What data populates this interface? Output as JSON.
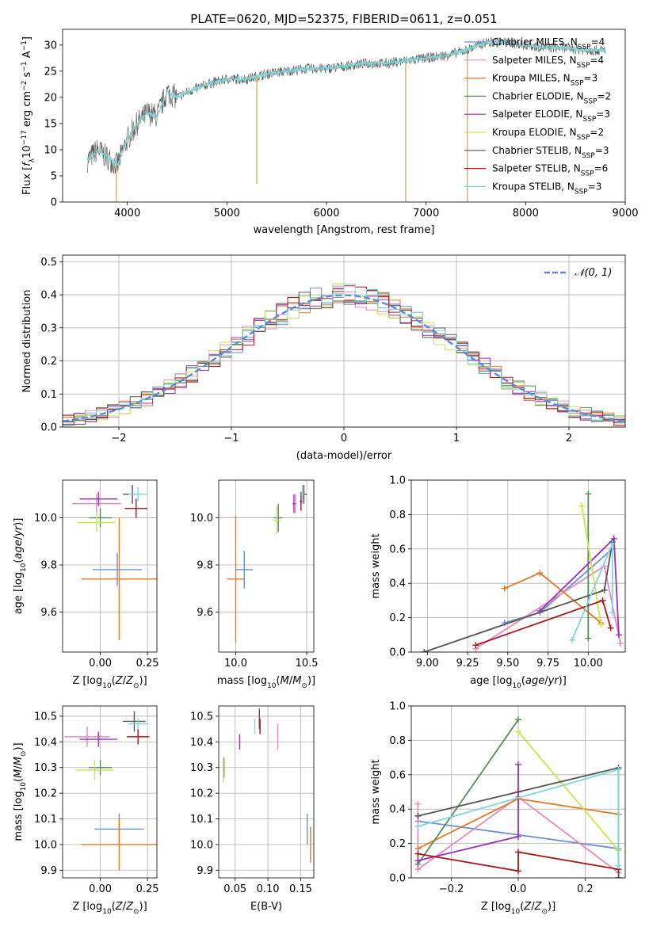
{
  "figure": {
    "title": "PLATE=0620, MJD=52375, FIBERID=0611, z=0.051"
  },
  "legend_colors": {
    "chabrier_miles": "#6a8fd8",
    "salpeter_miles": "#e88ac0",
    "kroupa_miles": "#e07b25",
    "chabrier_elodie": "#5a8a5e",
    "salpeter_elodie": "#9b30b0",
    "kroupa_elodie": "#cde44a",
    "chabrier_stelib": "#555555",
    "salpeter_stelib": "#aa1818",
    "kroupa_stelib": "#7fd6dc"
  },
  "chart_data": [
    {
      "id": "spectrum",
      "type": "line",
      "xlabel": "wavelength [Angstrom, rest frame]",
      "ylabel": "Flux [f_λ10^-17 erg cm^-2 s^-1 A^-1]",
      "xlim": [
        3350,
        9000
      ],
      "ylim": [
        0,
        33
      ],
      "xticks": [
        4000,
        5000,
        6000,
        7000,
        8000,
        9000
      ],
      "yticks": [
        0,
        5,
        10,
        15,
        20,
        25,
        30
      ],
      "grid": false,
      "legend_position": "right",
      "legend": [
        {
          "label": "Chabrier MILES, N_SSP=4",
          "color": "#6a8fd8"
        },
        {
          "label": "Salpeter MILES, N_SSP=4",
          "color": "#e88ac0"
        },
        {
          "label": "Kroupa MILES, N_SSP=3",
          "color": "#e07b25"
        },
        {
          "label": "Chabrier ELODIE, N_SSP=2",
          "color": "#5a8a5e"
        },
        {
          "label": "Salpeter ELODIE, N_SSP=3",
          "color": "#9b30b0"
        },
        {
          "label": "Kroupa ELODIE, N_SSP=2",
          "color": "#cde44a"
        },
        {
          "label": "Chabrier STELIB, N_SSP=3",
          "color": "#555555"
        },
        {
          "label": "Salpeter STELIB, N_SSP=6",
          "color": "#aa1818"
        },
        {
          "label": "Kroupa STELIB, N_SSP=3",
          "color": "#7fd6dc"
        }
      ],
      "data_trend": {
        "x": [
          3600,
          3700,
          3800,
          3900,
          4000,
          4100,
          4200,
          4300,
          4400,
          4500,
          4600,
          4800,
          5000,
          5200,
          5400,
          5600,
          5800,
          6000,
          6200,
          6400,
          6600,
          6800,
          7000,
          7200,
          7400,
          7600,
          7800,
          8000,
          8200,
          8400,
          8600,
          8800
        ],
        "y": [
          8,
          10,
          8.5,
          7,
          12,
          15,
          17,
          16.5,
          21,
          20,
          21,
          22.5,
          23.5,
          23.5,
          24.5,
          25,
          25.5,
          25.5,
          26,
          26.5,
          26.5,
          27,
          27.5,
          28,
          29,
          30.5,
          30.5,
          30,
          29.5,
          29.5,
          29,
          29
        ]
      },
      "spikes": [
        {
          "x": 3890,
          "y": 0
        },
        {
          "x": 5300,
          "y": 3.5
        },
        {
          "x": 6795,
          "y": 0
        },
        {
          "x": 7415,
          "y": 0
        }
      ]
    },
    {
      "id": "residuals",
      "type": "line",
      "xlabel": "(data-model)/error",
      "ylabel": "Normed distribution",
      "xlim": [
        -2.5,
        2.5
      ],
      "ylim": [
        0,
        0.52
      ],
      "xticks": [
        -2,
        -1,
        0,
        1,
        2
      ],
      "yticks": [
        0.0,
        0.1,
        0.2,
        0.3,
        0.4,
        0.5
      ],
      "grid": true,
      "legend_position": "top-right",
      "legend": [
        {
          "label": "𝒩(0, 1)",
          "color": "#5b8bd8",
          "style": "dashed"
        }
      ],
      "curve": "normal(0,1)",
      "histogram_bin_width": 0.1,
      "histogram_series_colors": [
        "#6a8fd8",
        "#e88ac0",
        "#e07b25",
        "#5a8a5e",
        "#9b30b0",
        "#cde44a",
        "#555555",
        "#aa1818",
        "#7fd6dc"
      ]
    },
    {
      "id": "age_vs_Z",
      "type": "scatter",
      "xlabel": "Z [log10(Z/Z⊙)]",
      "ylabel": "age  [log10(age/yr)]",
      "xlim": [
        -0.2,
        0.3
      ],
      "ylim": [
        9.43,
        10.16
      ],
      "xticks": [
        0.0,
        0.25
      ],
      "yticks": [
        9.6,
        9.8,
        10.0
      ],
      "grid": true,
      "points": [
        {
          "x": 0.09,
          "y": 9.78,
          "xerr": 0.13,
          "yerr": 0.07,
          "color": "#6a8fd8"
        },
        {
          "x": 0.1,
          "y": 9.74,
          "xerr": 0.2,
          "yerr": 0.26,
          "color": "#e07b25"
        },
        {
          "x": -0.02,
          "y": 10.06,
          "xerr": 0.13,
          "yerr": 0.04,
          "color": "#e88ac0"
        },
        {
          "x": -0.01,
          "y": 10.08,
          "xerr": 0.1,
          "yerr": 0.03,
          "color": "#9b30b0"
        },
        {
          "x": 0.0,
          "y": 10.0,
          "xerr": 0.06,
          "yerr": 0.04,
          "color": "#5a8a5e"
        },
        {
          "x": -0.02,
          "y": 9.98,
          "xerr": 0.1,
          "yerr": 0.04,
          "color": "#cde44a"
        },
        {
          "x": 0.17,
          "y": 10.1,
          "xerr": 0.05,
          "yerr": 0.04,
          "color": "#555555"
        },
        {
          "x": 0.19,
          "y": 10.04,
          "xerr": 0.06,
          "yerr": 0.04,
          "color": "#aa1818"
        },
        {
          "x": 0.2,
          "y": 10.1,
          "xerr": 0.05,
          "yerr": 0.03,
          "color": "#7fd6dc"
        }
      ]
    },
    {
      "id": "age_vs_mass",
      "type": "scatter",
      "xlabel": "mass [log10(M/M⊙)]",
      "ylabel": "",
      "xlim": [
        9.88,
        10.55
      ],
      "ylim": [
        9.43,
        10.16
      ],
      "xticks": [
        10.0,
        10.5
      ],
      "yticks": [
        9.6,
        9.8,
        10.0
      ],
      "grid": true,
      "points": [
        {
          "x": 10.06,
          "y": 9.78,
          "xerr": 0.06,
          "yerr": 0.08,
          "color": "#6a8fd8"
        },
        {
          "x": 10.0,
          "y": 9.74,
          "xerr": 0.06,
          "yerr": 0.27,
          "color": "#e07b25"
        },
        {
          "x": 10.42,
          "y": 10.06,
          "xerr": 0.01,
          "yerr": 0.04,
          "color": "#e88ac0"
        },
        {
          "x": 10.41,
          "y": 10.06,
          "xerr": 0.01,
          "yerr": 0.04,
          "color": "#9b30b0"
        },
        {
          "x": 10.3,
          "y": 10.0,
          "xerr": 0.03,
          "yerr": 0.06,
          "color": "#5a8a5e"
        },
        {
          "x": 10.29,
          "y": 9.99,
          "xerr": 0.03,
          "yerr": 0.06,
          "color": "#cde44a"
        },
        {
          "x": 10.48,
          "y": 10.1,
          "xerr": 0.02,
          "yerr": 0.04,
          "color": "#555555"
        },
        {
          "x": 10.46,
          "y": 10.07,
          "xerr": 0.01,
          "yerr": 0.04,
          "color": "#aa1818"
        },
        {
          "x": 10.47,
          "y": 10.1,
          "xerr": 0.01,
          "yerr": 0.04,
          "color": "#7fd6dc"
        }
      ]
    },
    {
      "id": "weight_vs_age",
      "type": "line",
      "xlabel": "age  [log10(age/yr)]",
      "ylabel": "mass weight",
      "xlim": [
        8.9,
        10.23
      ],
      "ylim": [
        0,
        1
      ],
      "xticks": [
        9.0,
        9.25,
        9.5,
        9.75,
        10.0
      ],
      "xticklabels": [
        "9.00",
        "9.25",
        "9.50",
        "9.75",
        "10.00"
      ],
      "yticks": [
        0.0,
        0.2,
        0.4,
        0.6,
        0.8,
        1.0
      ],
      "grid": true,
      "series": [
        {
          "color": "#6a8fd8",
          "x": [
            9.48,
            9.7,
            10.15
          ],
          "y": [
            0.17,
            0.23,
            0.6
          ]
        },
        {
          "color": "#e88ac0",
          "x": [
            9.3,
            10.1,
            10.2
          ],
          "y": [
            0.02,
            0.5,
            0.05
          ]
        },
        {
          "color": "#e07b25",
          "x": [
            9.48,
            9.7,
            10.08
          ],
          "y": [
            0.37,
            0.46,
            0.17
          ]
        },
        {
          "color": "#5a8a5e",
          "x": [
            10.0,
            10.0
          ],
          "y": [
            0.08,
            0.92
          ]
        },
        {
          "color": "#9b30b0",
          "x": [
            9.7,
            10.16,
            10.19
          ],
          "y": [
            0.24,
            0.66,
            0.1
          ]
        },
        {
          "color": "#cde44a",
          "x": [
            9.96,
            10.08
          ],
          "y": [
            0.85,
            0.16
          ]
        },
        {
          "color": "#555555",
          "x": [
            8.98,
            10.1,
            10.15
          ],
          "y": [
            0.0,
            0.36,
            0.64
          ]
        },
        {
          "color": "#aa1818",
          "x": [
            9.3,
            10.09,
            10.14
          ],
          "y": [
            0.04,
            0.3,
            0.14
          ]
        },
        {
          "color": "#7fd6dc",
          "x": [
            9.9,
            10.15,
            10.15
          ],
          "y": [
            0.07,
            0.63,
            0.23
          ]
        }
      ]
    },
    {
      "id": "mass_vs_Z",
      "type": "scatter",
      "xlabel": "Z [log10(Z/Z⊙)]",
      "ylabel": "mass [log10(M/M⊙)]",
      "xlim": [
        -0.2,
        0.3
      ],
      "ylim": [
        9.87,
        10.54
      ],
      "xticks": [
        0.0,
        0.25
      ],
      "yticks": [
        9.9,
        10.0,
        10.1,
        10.2,
        10.3,
        10.4,
        10.5
      ],
      "grid": true,
      "points": [
        {
          "x": 0.1,
          "y": 10.06,
          "xerr": 0.13,
          "yerr": 0.06,
          "color": "#6a8fd8"
        },
        {
          "x": 0.1,
          "y": 10.0,
          "xerr": 0.2,
          "yerr": 0.1,
          "color": "#e07b25"
        },
        {
          "x": -0.07,
          "y": 10.42,
          "xerr": 0.12,
          "yerr": 0.04,
          "color": "#e88ac0"
        },
        {
          "x": -0.01,
          "y": 10.41,
          "xerr": 0.1,
          "yerr": 0.03,
          "color": "#9b30b0"
        },
        {
          "x": 0.0,
          "y": 10.3,
          "xerr": 0.06,
          "yerr": 0.03,
          "color": "#5a8a5e"
        },
        {
          "x": -0.03,
          "y": 10.29,
          "xerr": 0.1,
          "yerr": 0.04,
          "color": "#cde44a"
        },
        {
          "x": 0.18,
          "y": 10.48,
          "xerr": 0.06,
          "yerr": 0.04,
          "color": "#555555"
        },
        {
          "x": 0.2,
          "y": 10.42,
          "xerr": 0.06,
          "yerr": 0.03,
          "color": "#aa1818"
        },
        {
          "x": 0.2,
          "y": 10.47,
          "xerr": 0.05,
          "yerr": 0.02,
          "color": "#7fd6dc"
        }
      ]
    },
    {
      "id": "mass_vs_ebv",
      "type": "scatter",
      "xlabel": "E(B-V)",
      "ylabel": "",
      "xlim": [
        0.025,
        0.17
      ],
      "ylim": [
        9.87,
        10.54
      ],
      "xticks": [
        0.05,
        0.1,
        0.15
      ],
      "xticklabels": [
        "0.05",
        "0.10",
        "0.15"
      ],
      "yticks": [
        9.9,
        10.0,
        10.1,
        10.2,
        10.3,
        10.4,
        10.5
      ],
      "grid": true,
      "points": [
        {
          "x": 0.16,
          "y": 10.06,
          "yerr": 0.06,
          "color": "#6a8fd8"
        },
        {
          "x": 0.165,
          "y": 10.0,
          "yerr": 0.07,
          "color": "#e07b25"
        },
        {
          "x": 0.115,
          "y": 10.42,
          "yerr": 0.05,
          "color": "#e88ac0"
        },
        {
          "x": 0.057,
          "y": 10.4,
          "yerr": 0.03,
          "color": "#9b30b0"
        },
        {
          "x": 0.033,
          "y": 10.3,
          "yerr": 0.04,
          "color": "#5a8a5e"
        },
        {
          "x": 0.032,
          "y": 10.29,
          "yerr": 0.05,
          "color": "#cde44a"
        },
        {
          "x": 0.087,
          "y": 10.49,
          "yerr": 0.04,
          "color": "#555555"
        },
        {
          "x": 0.088,
          "y": 10.46,
          "yerr": 0.03,
          "color": "#aa1818"
        },
        {
          "x": 0.08,
          "y": 10.46,
          "yerr": 0.03,
          "color": "#7fd6dc"
        }
      ]
    },
    {
      "id": "weight_vs_Z",
      "type": "line",
      "xlabel": "Z [log10(Z/Z⊙)]",
      "ylabel": "mass weight",
      "xlim": [
        -0.32,
        0.32
      ],
      "ylim": [
        0,
        1
      ],
      "xticks": [
        -0.2,
        0.0,
        0.2
      ],
      "xticklabels": [
        "−0.2",
        "0.0",
        "0.2"
      ],
      "yticks": [
        0.0,
        0.2,
        0.4,
        0.6,
        0.8,
        1.0
      ],
      "grid": true,
      "series": [
        {
          "color": "#6a8fd8",
          "x": [
            -0.3,
            0.3
          ],
          "y": [
            0.33,
            0.17
          ]
        },
        {
          "color": "#e88ac0",
          "x": [
            -0.3,
            -0.3,
            0.0,
            0.3
          ],
          "y": [
            0.43,
            0.05,
            0.47,
            0.03
          ]
        },
        {
          "color": "#e07b25",
          "x": [
            -0.3,
            0.0,
            0.3
          ],
          "y": [
            0.17,
            0.46,
            0.37
          ]
        },
        {
          "color": "#5a8a5e",
          "x": [
            -0.3,
            0.0
          ],
          "y": [
            0.08,
            0.92
          ]
        },
        {
          "color": "#9b30b0",
          "x": [
            -0.3,
            0.0,
            0.0,
            0.0
          ],
          "y": [
            0.1,
            0.24,
            0.66,
            0.5
          ]
        },
        {
          "color": "#cde44a",
          "x": [
            0.0,
            0.3
          ],
          "y": [
            0.85,
            0.16
          ]
        },
        {
          "color": "#555555",
          "x": [
            -0.3,
            0.3,
            0.3
          ],
          "y": [
            0.36,
            0.64,
            0.0
          ]
        },
        {
          "color": "#aa1818",
          "x": [
            -0.3,
            0.0,
            0.0,
            0.3
          ],
          "y": [
            0.14,
            0.04,
            0.15,
            0.05
          ]
        },
        {
          "color": "#7fd6dc",
          "x": [
            -0.3,
            0.3,
            0.3
          ],
          "y": [
            0.3,
            0.63,
            0.07
          ]
        }
      ]
    }
  ]
}
